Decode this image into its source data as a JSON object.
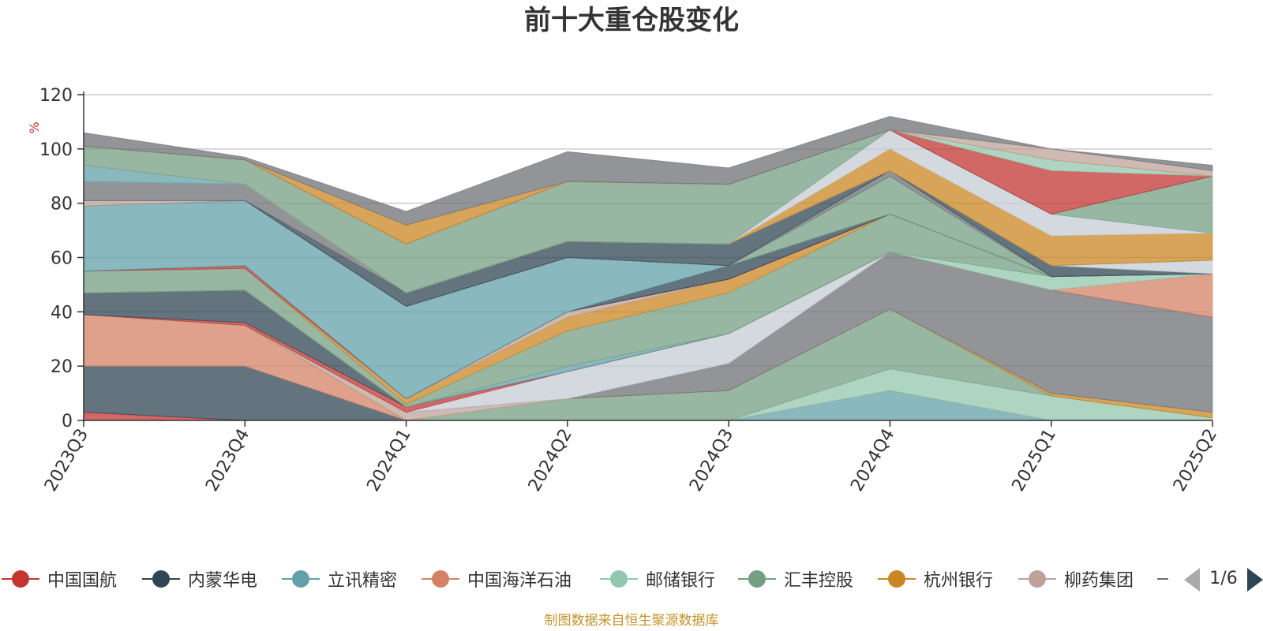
{
  "chart_data": {
    "type": "area",
    "stacked": true,
    "title": "前十大重仓股变化",
    "ylabel": "%",
    "ylim": [
      0,
      120
    ],
    "yticks": [
      0,
      20,
      40,
      60,
      80,
      100,
      120
    ],
    "categories": [
      "2023Q3",
      "2023Q4",
      "2024Q1",
      "2024Q2",
      "2024Q3",
      "2024Q4",
      "2025Q1",
      "2025Q2"
    ],
    "grid": true,
    "legend_position": "bottom",
    "series": [
      {
        "name": "中国国航",
        "color": "#c23531",
        "values": [
          3,
          0,
          0,
          0,
          0,
          0,
          0,
          0
        ]
      },
      {
        "name": "内蒙华电",
        "color": "#2f4554",
        "values": [
          17,
          20,
          0,
          0,
          0,
          0,
          0,
          0
        ]
      },
      {
        "name": "立讯精密",
        "color": "#61a0a8",
        "values": [
          0,
          0,
          0,
          0,
          0,
          11,
          0,
          0
        ]
      },
      {
        "name": "中国海洋石油",
        "color": "#d48265",
        "values": [
          19,
          15,
          0,
          0,
          0,
          0,
          0,
          0
        ]
      },
      {
        "name": "邮储银行",
        "color": "#91c7ae",
        "values": [
          0,
          0,
          0,
          0,
          0,
          8,
          9,
          1
        ]
      },
      {
        "name": "汇丰控股",
        "color": "#749f83",
        "values": [
          0,
          0,
          0,
          8,
          11,
          22,
          0,
          0
        ]
      },
      {
        "name": "杭州银行",
        "color": "#ca8622",
        "values": [
          0,
          0,
          0,
          0,
          0,
          0,
          1,
          2
        ]
      },
      {
        "name": "柳药集团",
        "color": "#bda29a",
        "values": [
          0,
          0,
          3,
          0,
          0,
          0,
          0,
          0
        ]
      },
      {
        "color": "#6e7074",
        "values": [
          0,
          0,
          0,
          0,
          10,
          21,
          38,
          35
        ]
      },
      {
        "color": "#c4ccd3",
        "values": [
          0,
          0,
          0,
          10,
          11,
          0,
          0,
          0
        ]
      },
      {
        "color": "#c23531",
        "values": [
          0,
          1,
          2,
          0,
          0,
          0,
          0,
          0
        ]
      },
      {
        "color": "#2f4554",
        "values": [
          8,
          12,
          0,
          0,
          0,
          0,
          0,
          0
        ]
      },
      {
        "color": "#61a0a8",
        "values": [
          0,
          0,
          0,
          2,
          0,
          0,
          0,
          0
        ]
      },
      {
        "color": "#d48265",
        "values": [
          0,
          0,
          0,
          0,
          0,
          0,
          0,
          16
        ]
      },
      {
        "color": "#91c7ae",
        "values": [
          0,
          0,
          0,
          0,
          0,
          0,
          5,
          0
        ]
      },
      {
        "color": "#749f83",
        "values": [
          8,
          8,
          1,
          13,
          15,
          14,
          0,
          0
        ]
      },
      {
        "color": "#ca8622",
        "values": [
          0,
          0,
          2,
          5,
          5,
          0,
          0,
          0
        ]
      },
      {
        "color": "#bda29a",
        "values": [
          0,
          0,
          0,
          2,
          0,
          0,
          0,
          0
        ]
      },
      {
        "color": "#6e7074",
        "values": [
          0,
          0,
          0,
          0,
          0,
          0,
          0,
          0
        ]
      },
      {
        "color": "#c4ccd3",
        "values": [
          0,
          0,
          0,
          0,
          0,
          0,
          0,
          0
        ]
      },
      {
        "color": "#c23531",
        "values": [
          0,
          1,
          0,
          0,
          0,
          0,
          0,
          0
        ]
      },
      {
        "color": "#2f4554",
        "values": [
          0,
          0,
          0,
          0,
          5,
          0,
          0,
          0
        ]
      },
      {
        "color": "#61a0a8",
        "values": [
          24,
          24,
          34,
          20,
          0,
          0,
          0,
          0
        ]
      },
      {
        "color": "#749f83",
        "values": [
          0,
          0,
          0,
          0,
          0,
          14,
          0,
          0
        ]
      },
      {
        "color": "#6e7074",
        "values": [
          0,
          0,
          0,
          0,
          0,
          2,
          0,
          0
        ]
      },
      {
        "color": "#bda29a",
        "values": [
          2,
          0,
          0,
          0,
          0,
          0,
          0,
          0
        ]
      },
      {
        "color": "#2f4554",
        "values": [
          0,
          0,
          5,
          6,
          8,
          0,
          4,
          0
        ]
      },
      {
        "color": "#6e7074",
        "values": [
          7,
          6,
          0,
          0,
          0,
          0,
          0,
          0
        ]
      },
      {
        "color": "#c4ccd3",
        "values": [
          0,
          0,
          0,
          0,
          0,
          0,
          0,
          5
        ]
      },
      {
        "color": "#61a0a8",
        "values": [
          6,
          0,
          0,
          0,
          0,
          0,
          0,
          0
        ]
      },
      {
        "color": "#ca8622",
        "values": [
          0,
          0,
          0,
          0,
          0,
          8,
          11,
          10
        ]
      },
      {
        "color": "#c4ccd3",
        "values": [
          0,
          0,
          0,
          0,
          0,
          7,
          8,
          0
        ]
      },
      {
        "color": "#749f83",
        "values": [
          7,
          9,
          18,
          22,
          22,
          0,
          0,
          21
        ]
      },
      {
        "color": "#6e7074",
        "values": [
          0,
          0,
          0,
          0,
          0,
          0,
          0,
          0
        ]
      },
      {
        "color": "#c23531",
        "values": [
          0,
          0,
          0,
          0,
          0,
          0,
          16,
          0
        ]
      },
      {
        "color": "#91c7ae",
        "values": [
          0,
          0,
          0,
          0,
          0,
          0,
          4,
          0
        ]
      },
      {
        "color": "#ca8622",
        "values": [
          0,
          0,
          7,
          0,
          0,
          0,
          0,
          0
        ]
      },
      {
        "color": "#bda29a",
        "values": [
          0,
          0,
          0,
          0,
          0,
          0,
          4,
          2
        ]
      },
      {
        "color": "#6e7074",
        "values": [
          5,
          1,
          5,
          11,
          6,
          5,
          0,
          2
        ]
      }
    ]
  },
  "legend": {
    "page_indicator": "1/6",
    "items": [
      {
        "label": "中国国航",
        "color": "#c23531"
      },
      {
        "label": "内蒙华电",
        "color": "#2f4554"
      },
      {
        "label": "立讯精密",
        "color": "#61a0a8"
      },
      {
        "label": "中国海洋石油",
        "color": "#d48265"
      },
      {
        "label": "邮储银行",
        "color": "#91c7ae"
      },
      {
        "label": "汇丰控股",
        "color": "#749f83"
      },
      {
        "label": "杭州银行",
        "color": "#ca8622"
      },
      {
        "label": "柳药集团",
        "color": "#bda29a"
      }
    ]
  },
  "source_note": "制图数据来自恒生聚源数据库"
}
